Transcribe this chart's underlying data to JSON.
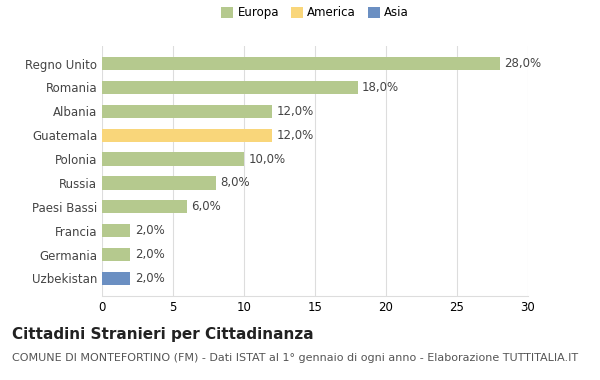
{
  "countries": [
    "Uzbekistan",
    "Germania",
    "Francia",
    "Paesi Bassi",
    "Russia",
    "Polonia",
    "Guatemala",
    "Albania",
    "Romania",
    "Regno Unito"
  ],
  "values": [
    2.0,
    2.0,
    2.0,
    6.0,
    8.0,
    10.0,
    12.0,
    12.0,
    18.0,
    28.0
  ],
  "bar_colors": [
    "#6b8fc2",
    "#b5c98e",
    "#b5c98e",
    "#b5c98e",
    "#b5c98e",
    "#b5c98e",
    "#f9d67a",
    "#b5c98e",
    "#b5c98e",
    "#b5c98e"
  ],
  "legend_colors": [
    "#b5c98e",
    "#f9d67a",
    "#6b8fc2"
  ],
  "legend_labels": [
    "Europa",
    "America",
    "Asia"
  ],
  "title": "Cittadini Stranieri per Cittadinanza",
  "subtitle": "COMUNE DI MONTEFORTINO (FM) - Dati ISTAT al 1° gennaio di ogni anno - Elaborazione TUTTITALIA.IT",
  "xlim": [
    0,
    30
  ],
  "xticks": [
    0,
    5,
    10,
    15,
    20,
    25,
    30
  ],
  "background_color": "#ffffff",
  "grid_color": "#dddddd",
  "bar_height": 0.55,
  "title_fontsize": 11,
  "subtitle_fontsize": 8,
  "label_fontsize": 8.5,
  "tick_fontsize": 8.5
}
